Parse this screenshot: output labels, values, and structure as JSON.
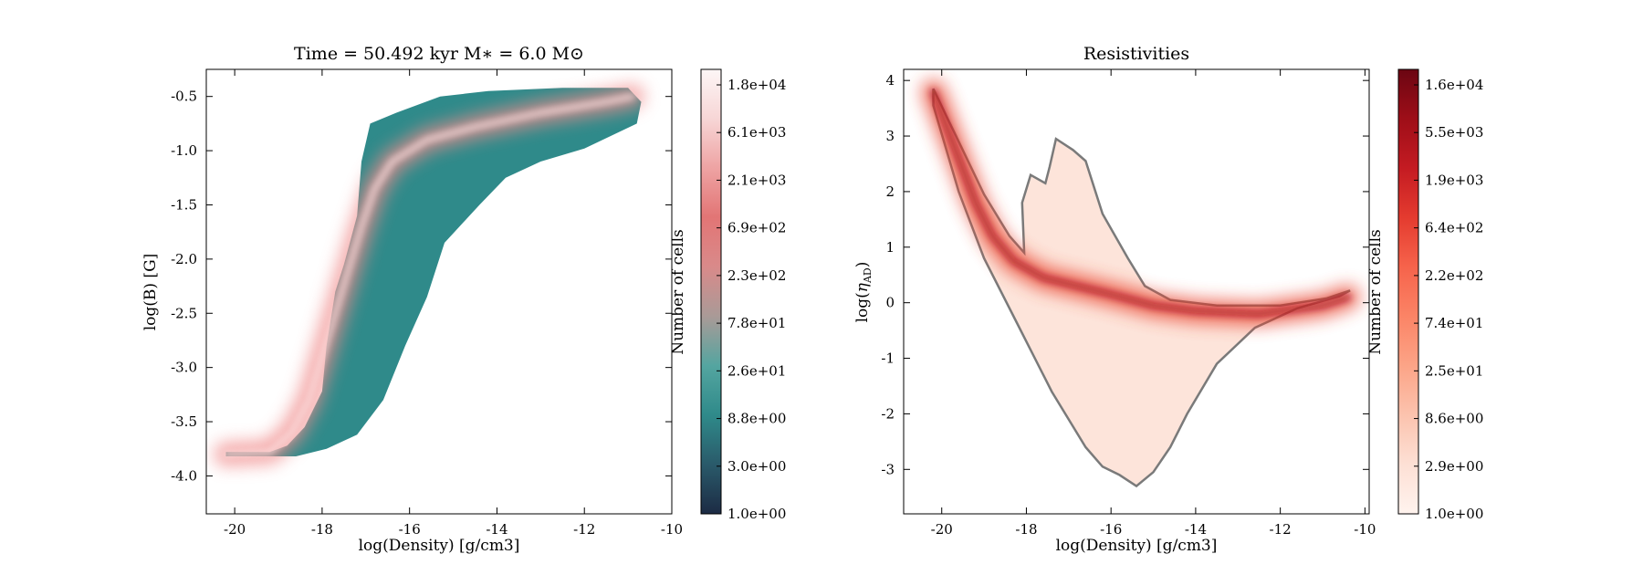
{
  "chart_data": [
    {
      "type": "heatmap",
      "title": "Time = 50.492 kyr    M$_*$ = 6.0 M$_\\odot$",
      "title_display": "Time = 50.492 kyr    M∗ = 6.0 M⊙",
      "xlabel": "log(Density) [g/cm3]",
      "ylabel": "log(B) [G]",
      "xlim": [
        -20.65,
        -10.0
      ],
      "ylim": [
        -4.35,
        -0.25
      ],
      "xticks": [
        -20,
        -18,
        -16,
        -14,
        -12,
        -10
      ],
      "xtick_labels": [
        "-20",
        "-18",
        "-16",
        "-14",
        "-12",
        "-10"
      ],
      "yticks": [
        -4.0,
        -3.5,
        -3.0,
        -2.5,
        -2.0,
        -1.5,
        -1.0,
        -0.5
      ],
      "ytick_labels": [
        "-4.0",
        "-3.5",
        "-3.0",
        "-2.5",
        "-2.0",
        "-1.5",
        "-1.0",
        "-0.5"
      ],
      "colorbar": {
        "label": "Number of cells",
        "scale": "log",
        "range": [
          1.0,
          20000
        ],
        "ticks": [
          "1.0e+00",
          "3.0e+00",
          "8.8e+00",
          "2.6e+01",
          "7.8e+01",
          "2.3e+02",
          "6.9e+02",
          "2.1e+03",
          "6.1e+03",
          "1.8e+04"
        ],
        "colors": [
          "#1c2b44",
          "#2a5a6a",
          "#2f8a8a",
          "#54a5a0",
          "#a99a97",
          "#d98a8a",
          "#e27575",
          "#eea3a3",
          "#f7d6d6",
          "#fdf6f6"
        ]
      },
      "region_outline": [
        [
          -20.2,
          -3.78
        ],
        [
          -19.2,
          -3.78
        ],
        [
          -18.8,
          -3.72
        ],
        [
          -18.4,
          -3.55
        ],
        [
          -18.0,
          -3.22
        ],
        [
          -17.9,
          -2.8
        ],
        [
          -17.7,
          -2.3
        ],
        [
          -17.5,
          -2.05
        ],
        [
          -17.2,
          -1.6
        ],
        [
          -17.1,
          -1.1
        ],
        [
          -16.9,
          -0.75
        ],
        [
          -16.3,
          -0.65
        ],
        [
          -15.3,
          -0.5
        ],
        [
          -14.2,
          -0.45
        ],
        [
          -12.5,
          -0.42
        ],
        [
          -11.0,
          -0.42
        ],
        [
          -10.7,
          -0.55
        ],
        [
          -10.8,
          -0.75
        ],
        [
          -12.0,
          -0.98
        ],
        [
          -13.0,
          -1.1
        ],
        [
          -13.8,
          -1.25
        ],
        [
          -14.4,
          -1.5
        ],
        [
          -15.2,
          -1.85
        ],
        [
          -15.6,
          -2.35
        ],
        [
          -16.1,
          -2.8
        ],
        [
          -16.6,
          -3.3
        ],
        [
          -17.2,
          -3.62
        ],
        [
          -17.9,
          -3.75
        ],
        [
          -18.6,
          -3.82
        ],
        [
          -20.2,
          -3.82
        ]
      ],
      "ridge": [
        [
          -20.2,
          -3.8
        ],
        [
          -19.2,
          -3.78
        ],
        [
          -18.7,
          -3.6
        ],
        [
          -18.3,
          -3.3
        ],
        [
          -18.0,
          -2.9
        ],
        [
          -17.7,
          -2.5
        ],
        [
          -17.4,
          -2.1
        ],
        [
          -17.1,
          -1.7
        ],
        [
          -16.8,
          -1.35
        ],
        [
          -16.4,
          -1.1
        ],
        [
          -15.6,
          -0.9
        ],
        [
          -14.5,
          -0.78
        ],
        [
          -13.0,
          -0.65
        ],
        [
          -11.5,
          -0.55
        ],
        [
          -10.9,
          -0.5
        ]
      ]
    },
    {
      "type": "heatmap",
      "title": "Resistivities",
      "xlabel": "log(Density) [g/cm3]",
      "ylabel": "log(ηAD)",
      "ylabel_main": "log(",
      "ylabel_symbol": "η",
      "ylabel_sub": "AD",
      "ylabel_close": ")",
      "xlim": [
        -20.9,
        -9.9
      ],
      "ylim": [
        -3.8,
        4.2
      ],
      "xticks": [
        -20,
        -18,
        -16,
        -14,
        -12,
        -10
      ],
      "xtick_labels": [
        "-20",
        "-18",
        "-16",
        "-14",
        "-12",
        "-10"
      ],
      "yticks": [
        -3,
        -2,
        -1,
        0,
        1,
        2,
        3,
        4
      ],
      "ytick_labels": [
        "-3",
        "-2",
        "-1",
        "0",
        "1",
        "2",
        "3",
        "4"
      ],
      "colorbar": {
        "label": "Number of cells",
        "scale": "log",
        "range": [
          1.0,
          17000
        ],
        "ticks": [
          "1.0e+00",
          "2.9e+00",
          "8.6e+00",
          "2.5e+01",
          "7.4e+01",
          "2.2e+02",
          "6.4e+02",
          "1.9e+03",
          "5.5e+03",
          "1.6e+04"
        ],
        "colors": [
          "#fff3ee",
          "#fde0d5",
          "#fcc3ae",
          "#fca487",
          "#fb8466",
          "#f6634b",
          "#e43b2f",
          "#c41b22",
          "#9e0e18",
          "#6b0612"
        ]
      },
      "region_outline": [
        [
          -20.2,
          3.85
        ],
        [
          -19.6,
          2.9
        ],
        [
          -19.0,
          1.95
        ],
        [
          -18.4,
          1.2
        ],
        [
          -18.05,
          0.9
        ],
        [
          -18.1,
          1.8
        ],
        [
          -17.9,
          2.3
        ],
        [
          -17.55,
          2.15
        ],
        [
          -17.45,
          2.45
        ],
        [
          -17.3,
          2.95
        ],
        [
          -16.9,
          2.75
        ],
        [
          -16.6,
          2.55
        ],
        [
          -16.2,
          1.6
        ],
        [
          -15.6,
          0.8
        ],
        [
          -15.2,
          0.3
        ],
        [
          -14.6,
          0.05
        ],
        [
          -13.5,
          -0.05
        ],
        [
          -12.0,
          -0.05
        ],
        [
          -10.9,
          0.08
        ],
        [
          -10.35,
          0.22
        ],
        [
          -10.6,
          0.12
        ],
        [
          -11.6,
          -0.1
        ],
        [
          -12.6,
          -0.45
        ],
        [
          -13.5,
          -1.1
        ],
        [
          -14.2,
          -2.0
        ],
        [
          -14.6,
          -2.6
        ],
        [
          -15.0,
          -3.05
        ],
        [
          -15.4,
          -3.3
        ],
        [
          -15.8,
          -3.1
        ],
        [
          -16.2,
          -2.95
        ],
        [
          -16.6,
          -2.6
        ],
        [
          -17.4,
          -1.6
        ],
        [
          -18.2,
          -0.4
        ],
        [
          -19.0,
          0.8
        ],
        [
          -19.6,
          2.0
        ],
        [
          -20.2,
          3.55
        ]
      ],
      "ridge": [
        [
          -20.2,
          3.8
        ],
        [
          -19.7,
          2.8
        ],
        [
          -19.2,
          1.8
        ],
        [
          -18.8,
          1.2
        ],
        [
          -18.3,
          0.75
        ],
        [
          -17.6,
          0.45
        ],
        [
          -16.8,
          0.3
        ],
        [
          -16.0,
          0.15
        ],
        [
          -15.0,
          -0.05
        ],
        [
          -14.0,
          -0.15
        ],
        [
          -12.5,
          -0.2
        ],
        [
          -11.0,
          -0.05
        ],
        [
          -10.4,
          0.1
        ]
      ]
    }
  ]
}
